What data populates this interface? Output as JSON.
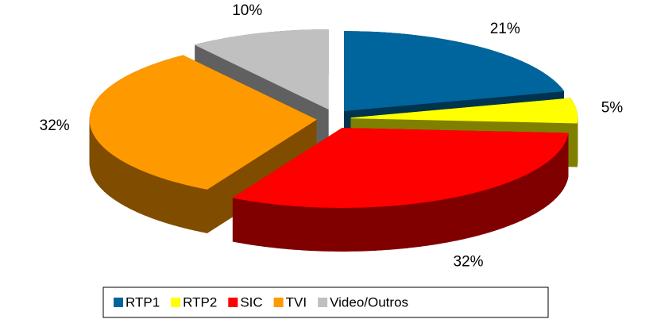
{
  "chart_data": {
    "type": "pie3d",
    "categories": [
      "RTP1",
      "RTP2",
      "SIC",
      "TVI",
      "Video/Outros"
    ],
    "values": [
      21,
      5,
      32,
      32,
      10
    ],
    "value_labels": [
      "21%",
      "5%",
      "32%",
      "32%",
      "10%"
    ],
    "colors": [
      "#00659c",
      "#ffff00",
      "#ff0000",
      "#ff9900",
      "#c0c0c0"
    ],
    "legend": "bottom"
  }
}
